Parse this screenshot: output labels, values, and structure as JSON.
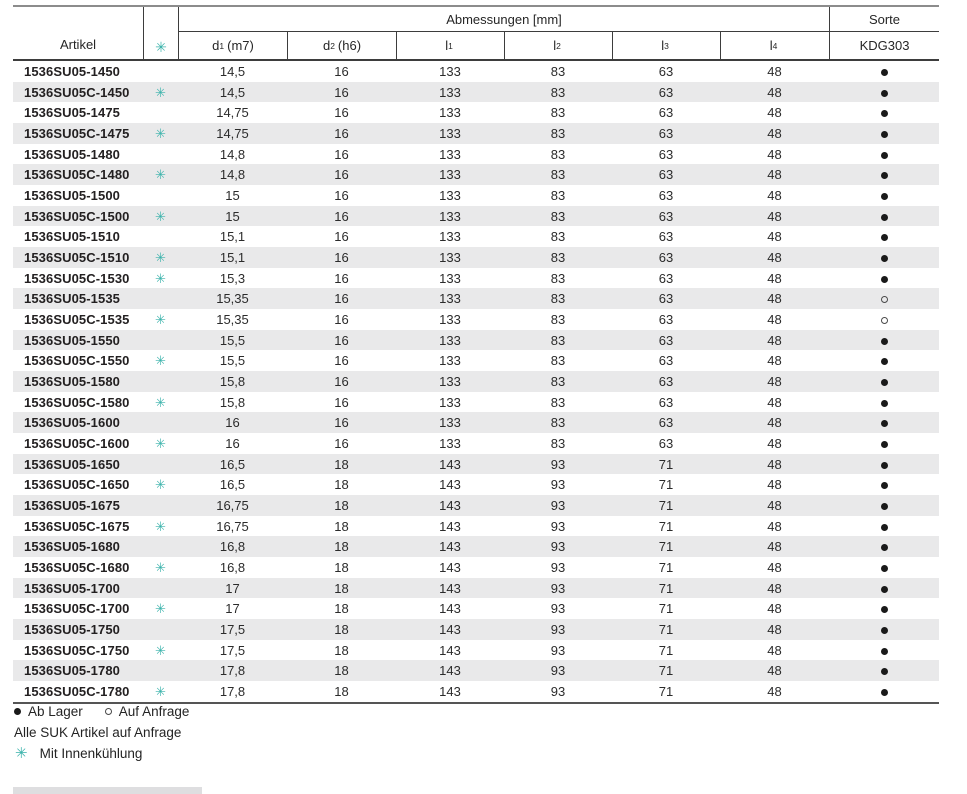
{
  "icons": {
    "snowflake": "✳"
  },
  "colors": {
    "teal": "#3bb3ab",
    "row_shade": "#e9e9ea"
  },
  "table": {
    "header": {
      "artikel": "Artikel",
      "abmessungen": "Abmessungen [mm]",
      "sorte": "Sorte",
      "kdg": "KDG303",
      "cols": [
        {
          "letter": "d",
          "sub": "1",
          "suffix": "(m7)"
        },
        {
          "letter": "d",
          "sub": "2",
          "suffix": "(h6)"
        },
        {
          "letter": "l",
          "sub": "1",
          "suffix": ""
        },
        {
          "letter": "l",
          "sub": "2",
          "suffix": ""
        },
        {
          "letter": "l",
          "sub": "3",
          "suffix": ""
        },
        {
          "letter": "l",
          "sub": "4",
          "suffix": ""
        }
      ]
    },
    "rows": [
      {
        "artikel": "1536SU05-1450",
        "cooled": false,
        "d1": "14,5",
        "d2": "16",
        "l1": "133",
        "l2": "83",
        "l3": "63",
        "l4": "48",
        "sorte": "filled"
      },
      {
        "artikel": "1536SU05C-1450",
        "cooled": true,
        "d1": "14,5",
        "d2": "16",
        "l1": "133",
        "l2": "83",
        "l3": "63",
        "l4": "48",
        "sorte": "filled"
      },
      {
        "artikel": "1536SU05-1475",
        "cooled": false,
        "d1": "14,75",
        "d2": "16",
        "l1": "133",
        "l2": "83",
        "l3": "63",
        "l4": "48",
        "sorte": "filled"
      },
      {
        "artikel": "1536SU05C-1475",
        "cooled": true,
        "d1": "14,75",
        "d2": "16",
        "l1": "133",
        "l2": "83",
        "l3": "63",
        "l4": "48",
        "sorte": "filled"
      },
      {
        "artikel": "1536SU05-1480",
        "cooled": false,
        "d1": "14,8",
        "d2": "16",
        "l1": "133",
        "l2": "83",
        "l3": "63",
        "l4": "48",
        "sorte": "filled"
      },
      {
        "artikel": "1536SU05C-1480",
        "cooled": true,
        "d1": "14,8",
        "d2": "16",
        "l1": "133",
        "l2": "83",
        "l3": "63",
        "l4": "48",
        "sorte": "filled"
      },
      {
        "artikel": "1536SU05-1500",
        "cooled": false,
        "d1": "15",
        "d2": "16",
        "l1": "133",
        "l2": "83",
        "l3": "63",
        "l4": "48",
        "sorte": "filled"
      },
      {
        "artikel": "1536SU05C-1500",
        "cooled": true,
        "d1": "15",
        "d2": "16",
        "l1": "133",
        "l2": "83",
        "l3": "63",
        "l4": "48",
        "sorte": "filled"
      },
      {
        "artikel": "1536SU05-1510",
        "cooled": false,
        "d1": "15,1",
        "d2": "16",
        "l1": "133",
        "l2": "83",
        "l3": "63",
        "l4": "48",
        "sorte": "filled"
      },
      {
        "artikel": "1536SU05C-1510",
        "cooled": true,
        "d1": "15,1",
        "d2": "16",
        "l1": "133",
        "l2": "83",
        "l3": "63",
        "l4": "48",
        "sorte": "filled"
      },
      {
        "artikel": "1536SU05C-1530",
        "cooled": true,
        "d1": "15,3",
        "d2": "16",
        "l1": "133",
        "l2": "83",
        "l3": "63",
        "l4": "48",
        "sorte": "filled"
      },
      {
        "artikel": "1536SU05-1535",
        "cooled": false,
        "d1": "15,35",
        "d2": "16",
        "l1": "133",
        "l2": "83",
        "l3": "63",
        "l4": "48",
        "sorte": "open"
      },
      {
        "artikel": "1536SU05C-1535",
        "cooled": true,
        "d1": "15,35",
        "d2": "16",
        "l1": "133",
        "l2": "83",
        "l3": "63",
        "l4": "48",
        "sorte": "open"
      },
      {
        "artikel": "1536SU05-1550",
        "cooled": false,
        "d1": "15,5",
        "d2": "16",
        "l1": "133",
        "l2": "83",
        "l3": "63",
        "l4": "48",
        "sorte": "filled"
      },
      {
        "artikel": "1536SU05C-1550",
        "cooled": true,
        "d1": "15,5",
        "d2": "16",
        "l1": "133",
        "l2": "83",
        "l3": "63",
        "l4": "48",
        "sorte": "filled"
      },
      {
        "artikel": "1536SU05-1580",
        "cooled": false,
        "d1": "15,8",
        "d2": "16",
        "l1": "133",
        "l2": "83",
        "l3": "63",
        "l4": "48",
        "sorte": "filled"
      },
      {
        "artikel": "1536SU05C-1580",
        "cooled": true,
        "d1": "15,8",
        "d2": "16",
        "l1": "133",
        "l2": "83",
        "l3": "63",
        "l4": "48",
        "sorte": "filled"
      },
      {
        "artikel": "1536SU05-1600",
        "cooled": false,
        "d1": "16",
        "d2": "16",
        "l1": "133",
        "l2": "83",
        "l3": "63",
        "l4": "48",
        "sorte": "filled"
      },
      {
        "artikel": "1536SU05C-1600",
        "cooled": true,
        "d1": "16",
        "d2": "16",
        "l1": "133",
        "l2": "83",
        "l3": "63",
        "l4": "48",
        "sorte": "filled"
      },
      {
        "artikel": "1536SU05-1650",
        "cooled": false,
        "d1": "16,5",
        "d2": "18",
        "l1": "143",
        "l2": "93",
        "l3": "71",
        "l4": "48",
        "sorte": "filled"
      },
      {
        "artikel": "1536SU05C-1650",
        "cooled": true,
        "d1": "16,5",
        "d2": "18",
        "l1": "143",
        "l2": "93",
        "l3": "71",
        "l4": "48",
        "sorte": "filled"
      },
      {
        "artikel": "1536SU05-1675",
        "cooled": false,
        "d1": "16,75",
        "d2": "18",
        "l1": "143",
        "l2": "93",
        "l3": "71",
        "l4": "48",
        "sorte": "filled"
      },
      {
        "artikel": "1536SU05C-1675",
        "cooled": true,
        "d1": "16,75",
        "d2": "18",
        "l1": "143",
        "l2": "93",
        "l3": "71",
        "l4": "48",
        "sorte": "filled"
      },
      {
        "artikel": "1536SU05-1680",
        "cooled": false,
        "d1": "16,8",
        "d2": "18",
        "l1": "143",
        "l2": "93",
        "l3": "71",
        "l4": "48",
        "sorte": "filled"
      },
      {
        "artikel": "1536SU05C-1680",
        "cooled": true,
        "d1": "16,8",
        "d2": "18",
        "l1": "143",
        "l2": "93",
        "l3": "71",
        "l4": "48",
        "sorte": "filled"
      },
      {
        "artikel": "1536SU05-1700",
        "cooled": false,
        "d1": "17",
        "d2": "18",
        "l1": "143",
        "l2": "93",
        "l3": "71",
        "l4": "48",
        "sorte": "filled"
      },
      {
        "artikel": "1536SU05C-1700",
        "cooled": true,
        "d1": "17",
        "d2": "18",
        "l1": "143",
        "l2": "93",
        "l3": "71",
        "l4": "48",
        "sorte": "filled"
      },
      {
        "artikel": "1536SU05-1750",
        "cooled": false,
        "d1": "17,5",
        "d2": "18",
        "l1": "143",
        "l2": "93",
        "l3": "71",
        "l4": "48",
        "sorte": "filled"
      },
      {
        "artikel": "1536SU05C-1750",
        "cooled": true,
        "d1": "17,5",
        "d2": "18",
        "l1": "143",
        "l2": "93",
        "l3": "71",
        "l4": "48",
        "sorte": "filled"
      },
      {
        "artikel": "1536SU05-1780",
        "cooled": false,
        "d1": "17,8",
        "d2": "18",
        "l1": "143",
        "l2": "93",
        "l3": "71",
        "l4": "48",
        "sorte": "filled"
      },
      {
        "artikel": "1536SU05C-1780",
        "cooled": true,
        "d1": "17,8",
        "d2": "18",
        "l1": "143",
        "l2": "93",
        "l3": "71",
        "l4": "48",
        "sorte": "filled"
      }
    ]
  },
  "legend": {
    "filled_label": "Ab Lager",
    "open_label": "Auf Anfrage",
    "note": "Alle SUK Artikel auf Anfrage",
    "cooling_note": "Mit Innenkühlung"
  }
}
